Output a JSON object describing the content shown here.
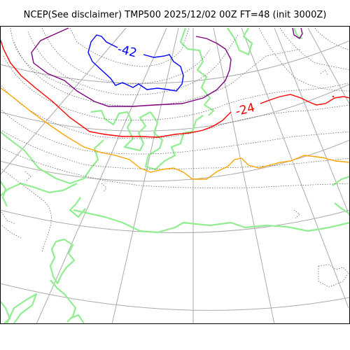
{
  "title": "NCEP(See disclaimer) TMP500 2025/12/02 00Z FT=48 (init 3000Z)",
  "contour_labels": {
    "cold": "-42",
    "warm": "-24"
  },
  "colors": {
    "coast": "#90ee90",
    "graticule": "#aaaaaa",
    "isotherm_minor": "#555555",
    "isotherm_blue": "#0000ff",
    "isotherm_purple": "#800080",
    "isotherm_red": "#ff0000",
    "isotherm_orange": "#ffa500"
  }
}
